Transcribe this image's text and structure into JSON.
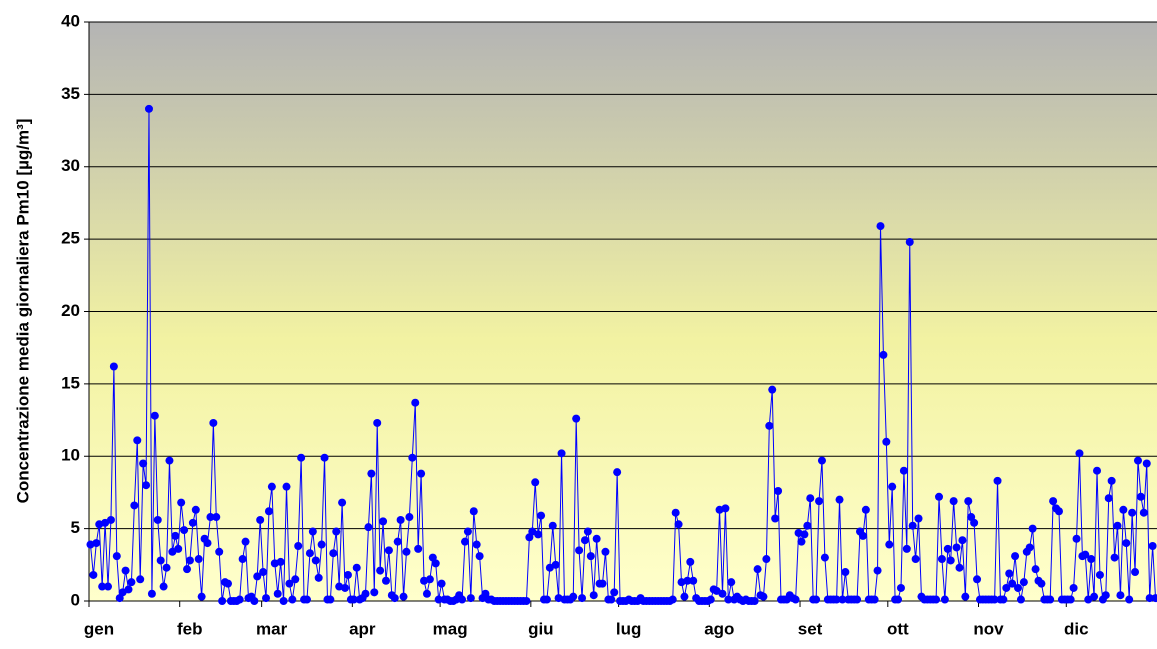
{
  "chart_data": {
    "type": "line",
    "y_label": "Concentrazione media giornaliera Pm10 [µg/m³]",
    "color": "#0000ff",
    "xlim": [
      0,
      365
    ],
    "xticks": [
      {
        "value": 0,
        "label": "gen"
      },
      {
        "value": 31,
        "label": "feb"
      },
      {
        "value": 59,
        "label": "mar"
      },
      {
        "value": 90,
        "label": "apr"
      },
      {
        "value": 120,
        "label": "mag"
      },
      {
        "value": 151,
        "label": "giu"
      },
      {
        "value": 181,
        "label": "lug"
      },
      {
        "value": 212,
        "label": "ago"
      },
      {
        "value": 243,
        "label": "set"
      },
      {
        "value": 273,
        "label": "ott"
      },
      {
        "value": 304,
        "label": "nov"
      },
      {
        "value": 334,
        "label": "dic"
      }
    ],
    "ylim": [
      0,
      40
    ],
    "yticks": [
      0,
      5,
      10,
      15,
      20,
      25,
      30,
      35,
      40
    ],
    "grid": true,
    "values": [
      3.9,
      1.8,
      4,
      5.3,
      1,
      5.4,
      1,
      5.6,
      16.2,
      3.1,
      0.2,
      0.6,
      2.1,
      0.8,
      1.3,
      6.6,
      11.1,
      1.5,
      9.5,
      8,
      34,
      0.5,
      12.8,
      5.6,
      2.8,
      1,
      2.3,
      9.7,
      3.4,
      4.5,
      3.6,
      6.8,
      4.9,
      2.2,
      2.8,
      5.4,
      6.3,
      2.9,
      0.3,
      4.3,
      4,
      5.8,
      12.3,
      5.8,
      3.4,
      0,
      1.3,
      1.2,
      0,
      0,
      0,
      0.1,
      2.9,
      4.1,
      0.2,
      0.3,
      0,
      1.7,
      5.6,
      2,
      0.2,
      6.2,
      7.9,
      2.6,
      0.5,
      2.7,
      0,
      7.9,
      1.2,
      0.1,
      1.5,
      3.8,
      9.9,
      0.1,
      0.1,
      3.3,
      4.8,
      2.8,
      1.6,
      3.9,
      9.9,
      0.1,
      0.1,
      3.3,
      4.8,
      1,
      6.8,
      0.9,
      1.8,
      0.1,
      0.1,
      2.3,
      0.1,
      0.2,
      0.5,
      5.1,
      8.8,
      0.6,
      12.3,
      2.1,
      5.5,
      1.4,
      3.5,
      0.4,
      0.2,
      4.1,
      5.6,
      0.3,
      3.4,
      5.8,
      9.9,
      13.7,
      3.6,
      8.8,
      1.4,
      0.5,
      1.5,
      3,
      2.6,
      0.1,
      1.2,
      0.1,
      0.1,
      0,
      0,
      0.1,
      0.4,
      0.1,
      4.1,
      4.8,
      0.2,
      6.2,
      3.9,
      3.1,
      0.2,
      0.5,
      0.1,
      0.1,
      0,
      0,
      0,
      0,
      0,
      0,
      0,
      0,
      0,
      0,
      0,
      0,
      4.4,
      4.8,
      8.2,
      4.6,
      5.9,
      0.1,
      0.1,
      2.3,
      5.2,
      2.5,
      0.2,
      10.2,
      0.1,
      0.1,
      0.1,
      0.3,
      12.6,
      3.5,
      0.2,
      4.2,
      4.8,
      3.1,
      0.4,
      4.3,
      1.2,
      1.2,
      3.4,
      0.1,
      0.1,
      0.6,
      8.9,
      0,
      0,
      0,
      0.1,
      0,
      0,
      0,
      0.2,
      0,
      0,
      0,
      0,
      0,
      0,
      0,
      0,
      0,
      0,
      0.1,
      6.1,
      5.3,
      1.3,
      0.3,
      1.4,
      2.7,
      1.4,
      0.2,
      0,
      0,
      0,
      0,
      0.1,
      0.8,
      0.7,
      6.3,
      0.5,
      6.4,
      0.1,
      1.3,
      0.1,
      0.3,
      0.1,
      0,
      0.1,
      0,
      0,
      0,
      2.2,
      0.4,
      0.3,
      2.9,
      12.1,
      14.6,
      5.7,
      7.6,
      0.1,
      0.1,
      0.1,
      0.4,
      0.2,
      0.1,
      4.7,
      4.1,
      4.6,
      5.2,
      7.1,
      0.1,
      0.1,
      6.9,
      9.7,
      3,
      0.1,
      0.1,
      0.1,
      0.1,
      7,
      0.1,
      2,
      0.1,
      0.1,
      0.1,
      0.1,
      4.8,
      4.5,
      6.3,
      0.1,
      0.1,
      0.1,
      2.1,
      25.9,
      17,
      11,
      3.9,
      7.9,
      0.1,
      0.1,
      0.9,
      9,
      3.6,
      24.8,
      5.2,
      2.9,
      5.7,
      0.3,
      0.1,
      0.1,
      0.1,
      0.1,
      0.1,
      7.2,
      2.9,
      0.1,
      3.6,
      2.8,
      6.9,
      3.7,
      2.3,
      4.2,
      0.3,
      6.9,
      5.8,
      5.4,
      1.5,
      0.1,
      0.1,
      0.1,
      0.1,
      0.1,
      0.1,
      8.3,
      0.1,
      0.1,
      0.9,
      1.9,
      1.2,
      3.1,
      0.9,
      0.1,
      1.3,
      3.4,
      3.7,
      5,
      2.2,
      1.4,
      1.2,
      0.1,
      0.1,
      0.1,
      6.9,
      6.4,
      6.2,
      0.1,
      0.1,
      0.1,
      0.1,
      0.9,
      4.3,
      10.2,
      3.1,
      3.2,
      0.1,
      2.9,
      0.3,
      9,
      1.8,
      0.1,
      0.4,
      7.1,
      8.3,
      3,
      5.2,
      0.4,
      6.3,
      4,
      0.1,
      6.1,
      2,
      9.7,
      7.2,
      6.1,
      9.5,
      0.2,
      3.8,
      0.2
    ]
  }
}
